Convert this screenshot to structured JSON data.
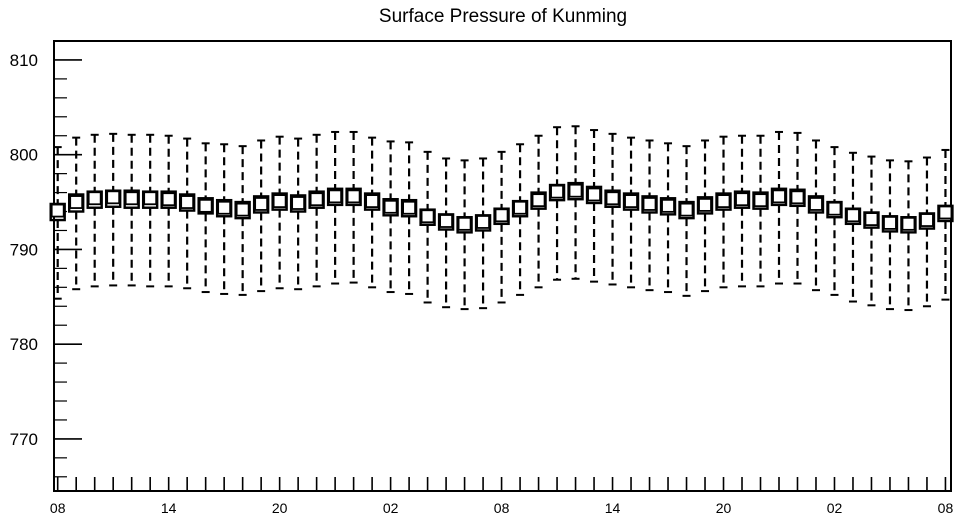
{
  "chart_data": {
    "type": "boxplot",
    "title": "Surface Pressure of Kunming",
    "xlabel": "",
    "ylabel": "",
    "ylim": [
      764.5,
      812
    ],
    "y_ticks": [
      770,
      780,
      790,
      800,
      810
    ],
    "y_tick_labels": [
      "770",
      "780",
      "790",
      "800",
      "810"
    ],
    "x_range": [
      -0.2,
      48.3
    ],
    "x_tick_positions": [
      0,
      6,
      12,
      18,
      24,
      30,
      36,
      42,
      48
    ],
    "x_tick_labels": [
      "08",
      "14",
      "20",
      "02",
      "08",
      "14",
      "20",
      "02",
      "08"
    ],
    "grid": false,
    "legend": "none",
    "boxes": [
      {
        "x": 0,
        "whisker_low": 784.8,
        "q1": 793.1,
        "median": 794.1,
        "q3": 794.8,
        "whisker_high": 800.8
      },
      {
        "x": 1,
        "whisker_low": 785.8,
        "q1": 794.0,
        "median": 795.0,
        "q3": 795.8,
        "whisker_high": 801.8
      },
      {
        "x": 2,
        "whisker_low": 786.1,
        "q1": 794.4,
        "median": 795.4,
        "q3": 796.1,
        "whisker_high": 802.1
      },
      {
        "x": 3,
        "whisker_low": 786.2,
        "q1": 794.5,
        "median": 795.5,
        "q3": 796.2,
        "whisker_high": 802.2
      },
      {
        "x": 4,
        "whisker_low": 786.2,
        "q1": 794.4,
        "median": 795.4,
        "q3": 796.2,
        "whisker_high": 802.1
      },
      {
        "x": 5,
        "whisker_low": 786.1,
        "q1": 794.4,
        "median": 795.4,
        "q3": 796.1,
        "whisker_high": 802.1
      },
      {
        "x": 6,
        "whisker_low": 786.1,
        "q1": 794.4,
        "median": 795.3,
        "q3": 796.1,
        "whisker_high": 802.0
      },
      {
        "x": 7,
        "whisker_low": 785.9,
        "q1": 794.1,
        "median": 795.0,
        "q3": 795.8,
        "whisker_high": 801.7
      },
      {
        "x": 8,
        "whisker_low": 785.5,
        "q1": 793.8,
        "median": 794.6,
        "q3": 795.4,
        "whisker_high": 801.2
      },
      {
        "x": 9,
        "whisker_low": 785.3,
        "q1": 793.5,
        "median": 794.4,
        "q3": 795.2,
        "whisker_high": 801.1
      },
      {
        "x": 10,
        "whisker_low": 785.2,
        "q1": 793.3,
        "median": 794.2,
        "q3": 795.0,
        "whisker_high": 800.9
      },
      {
        "x": 11,
        "whisker_low": 785.6,
        "q1": 793.9,
        "median": 794.8,
        "q3": 795.6,
        "whisker_high": 801.5
      },
      {
        "x": 12,
        "whisker_low": 785.9,
        "q1": 794.2,
        "median": 795.1,
        "q3": 795.9,
        "whisker_high": 801.9
      },
      {
        "x": 13,
        "whisker_low": 785.8,
        "q1": 794.0,
        "median": 794.9,
        "q3": 795.7,
        "whisker_high": 801.7
      },
      {
        "x": 14,
        "whisker_low": 786.1,
        "q1": 794.4,
        "median": 795.3,
        "q3": 796.1,
        "whisker_high": 802.1
      },
      {
        "x": 15,
        "whisker_low": 786.4,
        "q1": 794.7,
        "median": 795.6,
        "q3": 796.4,
        "whisker_high": 802.4
      },
      {
        "x": 16,
        "whisker_low": 786.5,
        "q1": 794.7,
        "median": 795.6,
        "q3": 796.4,
        "whisker_high": 802.4
      },
      {
        "x": 17,
        "whisker_low": 786.0,
        "q1": 794.2,
        "median": 795.1,
        "q3": 795.9,
        "whisker_high": 801.8
      },
      {
        "x": 18,
        "whisker_low": 785.5,
        "q1": 793.6,
        "median": 794.5,
        "q3": 795.3,
        "whisker_high": 801.4
      },
      {
        "x": 19,
        "whisker_low": 785.3,
        "q1": 793.5,
        "median": 794.4,
        "q3": 795.2,
        "whisker_high": 801.3
      },
      {
        "x": 20,
        "whisker_low": 784.4,
        "q1": 792.6,
        "median": 793.5,
        "q3": 794.2,
        "whisker_high": 800.3
      },
      {
        "x": 21,
        "whisker_low": 783.9,
        "q1": 792.1,
        "median": 793.0,
        "q3": 793.7,
        "whisker_high": 799.6
      },
      {
        "x": 22,
        "whisker_low": 783.7,
        "q1": 791.8,
        "median": 792.7,
        "q3": 793.4,
        "whisker_high": 799.4
      },
      {
        "x": 23,
        "whisker_low": 783.8,
        "q1": 792.0,
        "median": 792.9,
        "q3": 793.6,
        "whisker_high": 799.6
      },
      {
        "x": 24,
        "whisker_low": 784.4,
        "q1": 792.7,
        "median": 793.6,
        "q3": 794.3,
        "whisker_high": 800.3
      },
      {
        "x": 25,
        "whisker_low": 785.2,
        "q1": 793.5,
        "median": 794.4,
        "q3": 795.1,
        "whisker_high": 801.1
      },
      {
        "x": 26,
        "whisker_low": 786.0,
        "q1": 794.3,
        "median": 795.2,
        "q3": 796.0,
        "whisker_high": 802.0
      },
      {
        "x": 27,
        "whisker_low": 786.8,
        "q1": 795.2,
        "median": 796.1,
        "q3": 796.8,
        "whisker_high": 802.9
      },
      {
        "x": 28,
        "whisker_low": 786.9,
        "q1": 795.3,
        "median": 796.2,
        "q3": 797.0,
        "whisker_high": 803.0
      },
      {
        "x": 29,
        "whisker_low": 786.6,
        "q1": 794.9,
        "median": 795.8,
        "q3": 796.6,
        "whisker_high": 802.6
      },
      {
        "x": 30,
        "whisker_low": 786.3,
        "q1": 794.5,
        "median": 795.4,
        "q3": 796.2,
        "whisker_high": 802.2
      },
      {
        "x": 31,
        "whisker_low": 786.0,
        "q1": 794.2,
        "median": 795.1,
        "q3": 795.9,
        "whisker_high": 801.8
      },
      {
        "x": 32,
        "whisker_low": 785.7,
        "q1": 793.9,
        "median": 794.8,
        "q3": 795.6,
        "whisker_high": 801.5
      },
      {
        "x": 33,
        "whisker_low": 785.5,
        "q1": 793.7,
        "median": 794.6,
        "q3": 795.4,
        "whisker_high": 801.2
      },
      {
        "x": 34,
        "whisker_low": 785.1,
        "q1": 793.3,
        "median": 794.2,
        "q3": 795.0,
        "whisker_high": 800.9
      },
      {
        "x": 35,
        "whisker_low": 785.6,
        "q1": 793.8,
        "median": 794.7,
        "q3": 795.5,
        "whisker_high": 801.5
      },
      {
        "x": 36,
        "whisker_low": 786.0,
        "q1": 794.2,
        "median": 795.1,
        "q3": 795.9,
        "whisker_high": 801.9
      },
      {
        "x": 37,
        "whisker_low": 786.1,
        "q1": 794.4,
        "median": 795.3,
        "q3": 796.1,
        "whisker_high": 802.0
      },
      {
        "x": 38,
        "whisker_low": 786.1,
        "q1": 794.3,
        "median": 795.2,
        "q3": 796.0,
        "whisker_high": 802.0
      },
      {
        "x": 39,
        "whisker_low": 786.4,
        "q1": 794.7,
        "median": 795.6,
        "q3": 796.4,
        "whisker_high": 802.4
      },
      {
        "x": 40,
        "whisker_low": 786.4,
        "q1": 794.6,
        "median": 795.5,
        "q3": 796.3,
        "whisker_high": 802.3
      },
      {
        "x": 41,
        "whisker_low": 785.7,
        "q1": 793.9,
        "median": 794.8,
        "q3": 795.6,
        "whisker_high": 801.5
      },
      {
        "x": 42,
        "whisker_low": 785.2,
        "q1": 793.4,
        "median": 794.3,
        "q3": 795.0,
        "whisker_high": 800.8
      },
      {
        "x": 43,
        "whisker_low": 784.5,
        "q1": 792.7,
        "median": 793.6,
        "q3": 794.3,
        "whisker_high": 800.2
      },
      {
        "x": 44,
        "whisker_low": 784.1,
        "q1": 792.3,
        "median": 793.2,
        "q3": 793.9,
        "whisker_high": 799.8
      },
      {
        "x": 45,
        "whisker_low": 783.7,
        "q1": 791.9,
        "median": 792.8,
        "q3": 793.5,
        "whisker_high": 799.4
      },
      {
        "x": 46,
        "whisker_low": 783.6,
        "q1": 791.8,
        "median": 792.7,
        "q3": 793.4,
        "whisker_high": 799.3
      },
      {
        "x": 47,
        "whisker_low": 784.0,
        "q1": 792.2,
        "median": 793.1,
        "q3": 793.8,
        "whisker_high": 799.7
      },
      {
        "x": 48,
        "whisker_low": 784.7,
        "q1": 793.0,
        "median": 793.9,
        "q3": 794.6,
        "whisker_high": 800.5
      }
    ]
  }
}
